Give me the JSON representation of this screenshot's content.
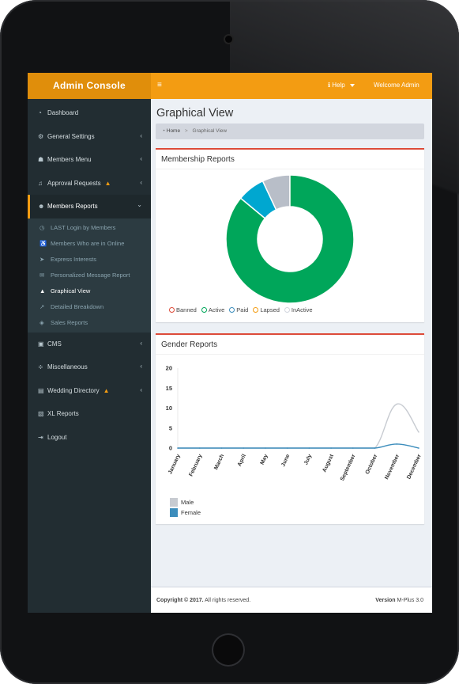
{
  "header": {
    "logo": "Admin Console",
    "menu_toggle": "≡",
    "help": "Help",
    "welcome": "Welcome Admin"
  },
  "sidebar": {
    "items": [
      {
        "icon": "dashboard-icon",
        "label": "Dashboard"
      },
      {
        "icon": "settings-icon",
        "label": "General Settings"
      },
      {
        "icon": "members-menu-icon",
        "label": "Members Menu"
      },
      {
        "icon": "bell-icon",
        "label": "Approval Requests"
      },
      {
        "icon": "users-icon",
        "label": "Members Reports"
      },
      {
        "icon": "cms-icon",
        "label": "CMS"
      },
      {
        "icon": "misc-icon",
        "label": "Miscellaneous"
      },
      {
        "icon": "book-icon",
        "label": "Wedding Directory"
      },
      {
        "icon": "excel-icon",
        "label": "XL Reports"
      },
      {
        "icon": "logout-icon",
        "label": "Logout"
      }
    ],
    "submenu": [
      {
        "icon": "clock-icon",
        "label": "LAST Login by Members"
      },
      {
        "icon": "wheelchair-icon",
        "label": "Members Who are in Online"
      },
      {
        "icon": "paper-plane-icon",
        "label": "Express Interests"
      },
      {
        "icon": "envelope-icon",
        "label": "Personalized Message Report"
      },
      {
        "icon": "area-chart-icon",
        "label": "Graphical View"
      },
      {
        "icon": "line-chart-icon",
        "label": "Detailed Breakdown"
      },
      {
        "icon": "tags-icon",
        "label": "Sales Reports"
      }
    ]
  },
  "page": {
    "title": "Graphical View",
    "breadcrumb": {
      "home": "Home",
      "sep": ">",
      "current": "Graphical View"
    }
  },
  "membership": {
    "title": "Membership Reports",
    "legend": [
      {
        "name": "Banned",
        "color": "#dd4b39"
      },
      {
        "name": "Active",
        "color": "#00a65a"
      },
      {
        "name": "Paid",
        "color": "#3c8dbc"
      },
      {
        "name": "Lapsed",
        "color": "#f39c12"
      },
      {
        "name": "InActive",
        "color": "#d2d6de"
      }
    ]
  },
  "gender": {
    "title": "Gender Reports"
  },
  "chart_data": [
    {
      "type": "pie",
      "variant": "doughnut",
      "categories": [
        "Banned",
        "Active",
        "Paid",
        "Lapsed",
        "InActive"
      ],
      "values": [
        0,
        86,
        7,
        0,
        7
      ],
      "colors": [
        "#dd4b39",
        "#00a65a",
        "#00a7d0",
        "#f39c12",
        "#b8bec8"
      ],
      "legend_position": "bottom-left"
    },
    {
      "type": "line",
      "categories": [
        "January",
        "February",
        "March",
        "April",
        "May",
        "June",
        "July",
        "August",
        "September",
        "October",
        "November",
        "December"
      ],
      "series": [
        {
          "name": "Male",
          "color": "#c7cbd1",
          "values": [
            0,
            0,
            0,
            0,
            0,
            0,
            0,
            0,
            0,
            0,
            11,
            4
          ]
        },
        {
          "name": "Female",
          "color": "#3c8dbc",
          "values": [
            0,
            0,
            0,
            0,
            0,
            0,
            0,
            0,
            0,
            0,
            1,
            0
          ]
        }
      ],
      "yticks": [
        "20",
        "15",
        "10",
        "5",
        "0"
      ],
      "ylim": [
        0,
        20
      ],
      "legend_position": "bottom-left"
    }
  ],
  "footer": {
    "copyright_bold": "Copyright © 2017.",
    "copyright_rest": " All rights reserved.",
    "version_bold": "Version",
    "version_rest": " M-Plus 3.0"
  }
}
